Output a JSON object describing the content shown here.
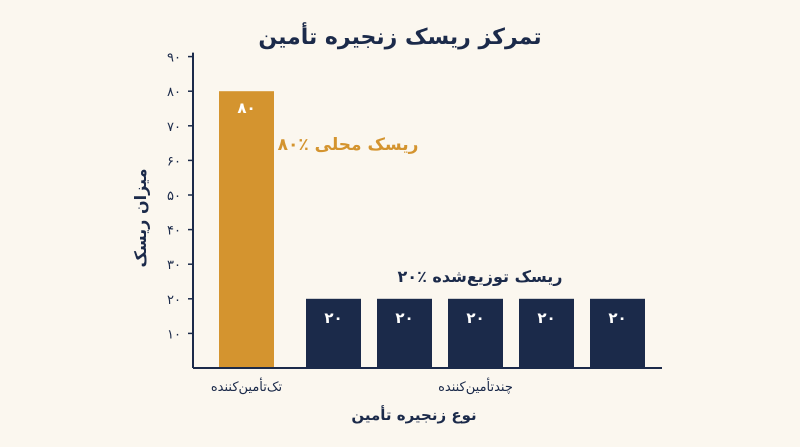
{
  "colors": {
    "background": "#fbf7ef",
    "navy": "#1b2a4a",
    "orange": "#d4942f",
    "white": "#ffffff"
  },
  "chart_data": {
    "type": "bar",
    "title": "تمرکز ریسک زنجیره تأمین",
    "xlabel": "نوع زنجیره تأمین",
    "ylabel": "میزان ریسک",
    "ylim": [
      0,
      90
    ],
    "yticks": [
      "۱۰",
      "۲۰",
      "۳۰",
      "۴۰",
      "۵۰",
      "۶۰",
      "۷۰",
      "۸۰",
      "۹۰"
    ],
    "ytick_values": [
      10,
      20,
      30,
      40,
      50,
      60,
      70,
      80,
      90
    ],
    "grid": false,
    "groups": [
      {
        "label": "تک‌تأمین‌کننده",
        "bar_count": 1
      },
      {
        "label": "چندتأمین‌کننده",
        "bar_count": 5
      }
    ],
    "bars": [
      {
        "value": 80,
        "label": "۸۰",
        "group": 0,
        "color": "#d4942f"
      },
      {
        "value": 20,
        "label": "۲۰",
        "group": 1,
        "color": "#1b2a4a"
      },
      {
        "value": 20,
        "label": "۲۰",
        "group": 1,
        "color": "#1b2a4a"
      },
      {
        "value": 20,
        "label": "۲۰",
        "group": 1,
        "color": "#1b2a4a"
      },
      {
        "value": 20,
        "label": "۲۰",
        "group": 1,
        "color": "#1b2a4a"
      },
      {
        "value": 20,
        "label": "۲۰",
        "group": 1,
        "color": "#1b2a4a"
      }
    ],
    "annotations": [
      {
        "text": "۸۰٪ ریسک محلی",
        "color": "#d4942f",
        "near": "bar-1"
      },
      {
        "text": "۲۰٪ ریسک توزیع‌شده",
        "color": "#1b2a4a",
        "near": "multi-supplier-group"
      }
    ]
  }
}
